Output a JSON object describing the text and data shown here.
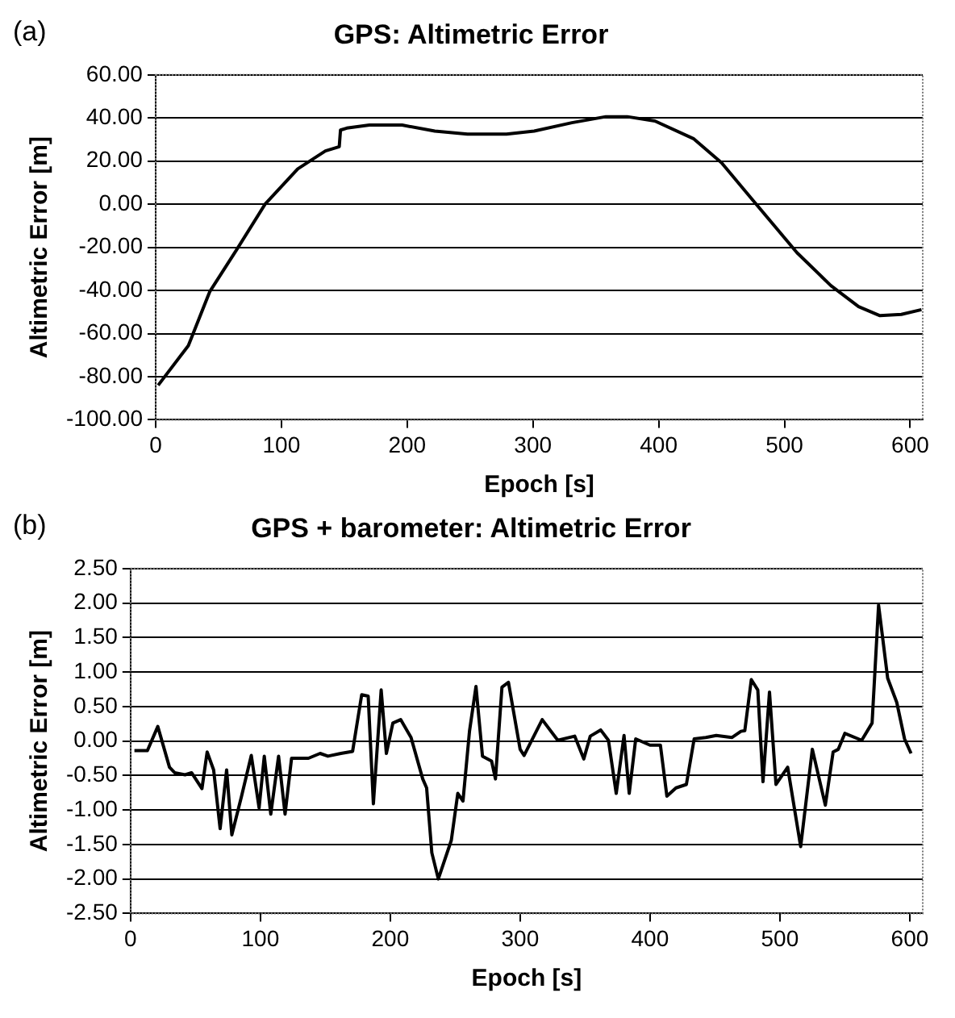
{
  "chart_data": [
    {
      "type": "line",
      "title": "GPS: Altimetric Error",
      "xlabel": "Epoch [s]",
      "ylabel": "Altimetric Error [m]",
      "annotations": [
        "(a)"
      ],
      "grid": "y",
      "xlim": [
        0,
        610
      ],
      "xticks": [
        0,
        100,
        200,
        300,
        400,
        500,
        600
      ],
      "ylim": [
        -100,
        60
      ],
      "yticks": [
        {
          "value": -100,
          "label": "-100.00"
        },
        {
          "value": -80,
          "label": "-80.00"
        },
        {
          "value": -60,
          "label": "-60.00"
        },
        {
          "value": -40,
          "label": "-40.00"
        },
        {
          "value": -20,
          "label": "-20.00"
        },
        {
          "value": 0,
          "label": "0.00"
        },
        {
          "value": 20,
          "label": "20.00"
        },
        {
          "value": 40,
          "label": "40.00"
        },
        {
          "value": 60,
          "label": "60.00"
        }
      ],
      "series": [
        {
          "color": "#000000",
          "x": [
            2,
            26,
            43,
            65,
            87,
            113,
            135,
            146,
            147,
            152,
            170,
            196,
            222,
            248,
            279,
            301,
            331,
            358,
            375,
            397,
            428,
            450,
            476,
            510,
            537,
            559,
            576,
            593,
            609
          ],
          "values": [
            -84,
            -65.6,
            -40.6,
            -20.6,
            0,
            16.4,
            24.7,
            26.7,
            34.4,
            35.3,
            36.7,
            36.7,
            33.9,
            32.5,
            32.5,
            33.9,
            37.8,
            40.6,
            40.6,
            38.6,
            30.3,
            19.2,
            1.1,
            -22.5,
            -37.8,
            -47.5,
            -51.7,
            -51.1,
            -48.9
          ]
        }
      ]
    },
    {
      "type": "line",
      "title": "GPS + barometer: Altimetric Error",
      "xlabel": "Epoch [s]",
      "ylabel": "Altimetric Error [m]",
      "annotations": [
        "(b)"
      ],
      "grid": "y",
      "xlim": [
        0,
        610
      ],
      "xticks": [
        0,
        100,
        200,
        300,
        400,
        500,
        600
      ],
      "ylim": [
        -2.5,
        2.5
      ],
      "yticks": [
        {
          "value": -2.5,
          "label": "-2.50"
        },
        {
          "value": -2,
          "label": "-2.00"
        },
        {
          "value": -1.5,
          "label": "-1.50"
        },
        {
          "value": -1,
          "label": "-1.00"
        },
        {
          "value": -0.5,
          "label": "-0.50"
        },
        {
          "value": 0,
          "label": "0.00"
        },
        {
          "value": 0.5,
          "label": "0.50"
        },
        {
          "value": 1,
          "label": "1.00"
        },
        {
          "value": 1.5,
          "label": "1.50"
        },
        {
          "value": 2,
          "label": "2.00"
        },
        {
          "value": 2.5,
          "label": "2.50"
        }
      ],
      "series": [
        {
          "color": "#000000",
          "x": [
            3,
            13,
            21,
            30,
            34,
            42,
            47,
            55,
            59,
            64,
            69,
            74,
            78,
            85.5,
            93,
            99,
            103,
            108,
            114,
            119,
            124,
            137,
            146,
            152,
            162,
            171,
            178,
            183,
            187,
            193,
            197,
            202,
            208,
            216,
            225,
            228,
            232,
            237,
            247,
            252,
            256,
            261,
            266,
            271,
            278,
            281,
            286,
            291,
            300,
            303,
            317,
            329,
            342,
            349,
            354,
            362,
            368,
            374,
            380,
            384,
            389,
            400,
            408,
            413,
            420,
            428,
            434,
            443,
            451,
            463,
            470,
            473,
            478,
            483,
            487,
            492,
            497,
            506,
            516,
            525,
            535,
            541,
            545,
            550,
            563,
            571,
            576,
            583,
            590,
            596,
            601
          ],
          "values": [
            -0.14,
            -0.14,
            0.21,
            -0.38,
            -0.46,
            -0.49,
            -0.46,
            -0.69,
            -0.16,
            -0.42,
            -1.27,
            -0.42,
            -1.36,
            -0.8,
            -0.21,
            -0.97,
            -0.22,
            -1.06,
            -0.22,
            -1.06,
            -0.25,
            -0.25,
            -0.18,
            -0.22,
            -0.18,
            -0.15,
            0.67,
            0.65,
            -0.91,
            0.74,
            -0.18,
            0.26,
            0.31,
            0.05,
            -0.55,
            -0.68,
            -1.62,
            -2,
            -1.44,
            -0.76,
            -0.87,
            0.14,
            0.79,
            -0.22,
            -0.29,
            -0.55,
            0.78,
            0.85,
            -0.12,
            -0.21,
            0.31,
            0.01,
            0.07,
            -0.26,
            0.07,
            0.16,
            0.01,
            -0.76,
            0.08,
            -0.76,
            0.03,
            -0.06,
            -0.06,
            -0.8,
            -0.68,
            -0.63,
            0.03,
            0.05,
            0.08,
            0.05,
            0.14,
            0.15,
            0.89,
            0.74,
            -0.59,
            0.71,
            -0.63,
            -0.38,
            -1.53,
            -0.12,
            -0.93,
            -0.16,
            -0.12,
            0.11,
            0.01,
            0.26,
            1.97,
            0.91,
            0.56,
            0.03,
            -0.18
          ]
        }
      ]
    }
  ]
}
